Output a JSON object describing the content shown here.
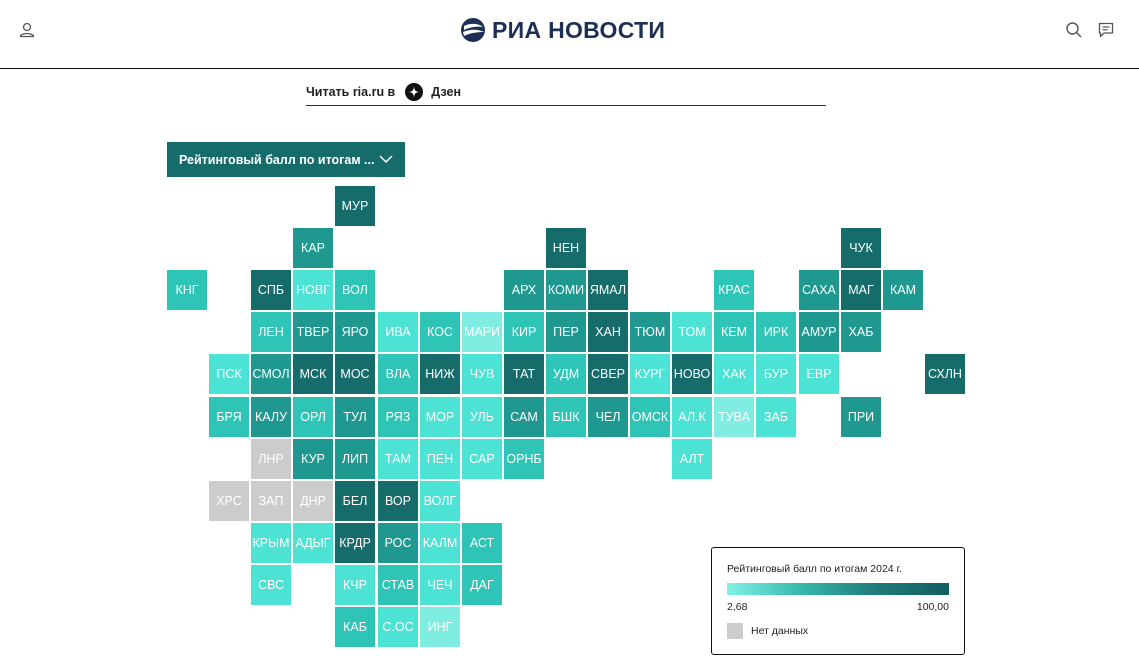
{
  "header": {
    "logo_text": "РИА НОВОСТИ"
  },
  "dzen": {
    "label": "Читать ria.ru в",
    "service": "Дзен"
  },
  "dropdown": {
    "label": "Рейтинговый балл по итогам ..."
  },
  "legend": {
    "title": "Рейтинговый балл по итогам 2024 г.",
    "min": "2,68",
    "max": "100,00",
    "no_data": "Нет данных"
  },
  "colors": {
    "dark": "#166b6b",
    "mid": "#1f9990",
    "light": "#2ec4b6",
    "pale": "#4de3d4",
    "faint": "#80ede2",
    "nodata": "#cccccc"
  },
  "tiles": [
    {
      "label": "МУР",
      "row": 0,
      "col": 4,
      "color": "#166b6b"
    },
    {
      "label": "КАР",
      "row": 1,
      "col": 3,
      "color": "#1f9990"
    },
    {
      "label": "НЕН",
      "row": 1,
      "col": 9,
      "color": "#166b6b"
    },
    {
      "label": "ЧУК",
      "row": 1,
      "col": 16,
      "color": "#166b6b"
    },
    {
      "label": "КНГ",
      "row": 2,
      "col": 0,
      "color": "#2ec4b6"
    },
    {
      "label": "СПБ",
      "row": 2,
      "col": 2,
      "color": "#166b6b"
    },
    {
      "label": "НОВГ",
      "row": 2,
      "col": 3,
      "color": "#4de3d4"
    },
    {
      "label": "ВОЛ",
      "row": 2,
      "col": 4,
      "color": "#2ec4b6"
    },
    {
      "label": "АРХ",
      "row": 2,
      "col": 8,
      "color": "#1f9990"
    },
    {
      "label": "КОМИ",
      "row": 2,
      "col": 9,
      "color": "#1f9990"
    },
    {
      "label": "ЯМАЛ",
      "row": 2,
      "col": 10,
      "color": "#166b6b"
    },
    {
      "label": "КРАС",
      "row": 2,
      "col": 13,
      "color": "#2ec4b6"
    },
    {
      "label": "САХА",
      "row": 2,
      "col": 15,
      "color": "#1f9990"
    },
    {
      "label": "МАГ",
      "row": 2,
      "col": 16,
      "color": "#166b6b"
    },
    {
      "label": "КАМ",
      "row": 2,
      "col": 17,
      "color": "#1f9990"
    },
    {
      "label": "ЛЕН",
      "row": 3,
      "col": 2,
      "color": "#2ec4b6"
    },
    {
      "label": "ТВЕР",
      "row": 3,
      "col": 3,
      "color": "#1f9990"
    },
    {
      "label": "ЯРО",
      "row": 3,
      "col": 4,
      "color": "#1f9990"
    },
    {
      "label": "ИВА",
      "row": 3,
      "col": 5,
      "color": "#4de3d4"
    },
    {
      "label": "КОС",
      "row": 3,
      "col": 6,
      "color": "#2ec4b6"
    },
    {
      "label": "МАРИ",
      "row": 3,
      "col": 7,
      "color": "#80ede2"
    },
    {
      "label": "КИР",
      "row": 3,
      "col": 8,
      "color": "#2ec4b6"
    },
    {
      "label": "ПЕР",
      "row": 3,
      "col": 9,
      "color": "#1f9990"
    },
    {
      "label": "ХАН",
      "row": 3,
      "col": 10,
      "color": "#166b6b"
    },
    {
      "label": "ТЮМ",
      "row": 3,
      "col": 11,
      "color": "#1f9990"
    },
    {
      "label": "ТОМ",
      "row": 3,
      "col": 12,
      "color": "#4de3d4"
    },
    {
      "label": "КЕМ",
      "row": 3,
      "col": 13,
      "color": "#2ec4b6"
    },
    {
      "label": "ИРК",
      "row": 3,
      "col": 14,
      "color": "#2ec4b6"
    },
    {
      "label": "АМУР",
      "row": 3,
      "col": 15,
      "color": "#1f9990"
    },
    {
      "label": "ХАБ",
      "row": 3,
      "col": 16,
      "color": "#1f9990"
    },
    {
      "label": "ПСК",
      "row": 4,
      "col": 1,
      "color": "#4de3d4"
    },
    {
      "label": "СМОЛ",
      "row": 4,
      "col": 2,
      "color": "#1f9990"
    },
    {
      "label": "МСК",
      "row": 4,
      "col": 3,
      "color": "#166b6b"
    },
    {
      "label": "МОС",
      "row": 4,
      "col": 4,
      "color": "#166b6b"
    },
    {
      "label": "ВЛА",
      "row": 4,
      "col": 5,
      "color": "#2ec4b6"
    },
    {
      "label": "НИЖ",
      "row": 4,
      "col": 6,
      "color": "#166b6b"
    },
    {
      "label": "ЧУВ",
      "row": 4,
      "col": 7,
      "color": "#4de3d4"
    },
    {
      "label": "ТАТ",
      "row": 4,
      "col": 8,
      "color": "#166b6b"
    },
    {
      "label": "УДМ",
      "row": 4,
      "col": 9,
      "color": "#2ec4b6"
    },
    {
      "label": "СВЕР",
      "row": 4,
      "col": 10,
      "color": "#166b6b"
    },
    {
      "label": "КУРГ",
      "row": 4,
      "col": 11,
      "color": "#4de3d4"
    },
    {
      "label": "НОВО",
      "row": 4,
      "col": 12,
      "color": "#166b6b"
    },
    {
      "label": "ХАК",
      "row": 4,
      "col": 13,
      "color": "#4de3d4"
    },
    {
      "label": "БУР",
      "row": 4,
      "col": 14,
      "color": "#4de3d4"
    },
    {
      "label": "ЕВР",
      "row": 4,
      "col": 15,
      "color": "#4de3d4"
    },
    {
      "label": "СХЛН",
      "row": 4,
      "col": 18,
      "color": "#166b6b"
    },
    {
      "label": "БРЯ",
      "row": 5,
      "col": 1,
      "color": "#2ec4b6"
    },
    {
      "label": "КАЛУ",
      "row": 5,
      "col": 2,
      "color": "#1f9990"
    },
    {
      "label": "ОРЛ",
      "row": 5,
      "col": 3,
      "color": "#2ec4b6"
    },
    {
      "label": "ТУЛ",
      "row": 5,
      "col": 4,
      "color": "#1f9990"
    },
    {
      "label": "РЯЗ",
      "row": 5,
      "col": 5,
      "color": "#2ec4b6"
    },
    {
      "label": "МОР",
      "row": 5,
      "col": 6,
      "color": "#4de3d4"
    },
    {
      "label": "УЛЬ",
      "row": 5,
      "col": 7,
      "color": "#4de3d4"
    },
    {
      "label": "САМ",
      "row": 5,
      "col": 8,
      "color": "#1f9990"
    },
    {
      "label": "БШК",
      "row": 5,
      "col": 9,
      "color": "#2ec4b6"
    },
    {
      "label": "ЧЕЛ",
      "row": 5,
      "col": 10,
      "color": "#1f9990"
    },
    {
      "label": "ОМСК",
      "row": 5,
      "col": 11,
      "color": "#2ec4b6"
    },
    {
      "label": "АЛ.К",
      "row": 5,
      "col": 12,
      "color": "#4de3d4"
    },
    {
      "label": "ТУВА",
      "row": 5,
      "col": 13,
      "color": "#80ede2"
    },
    {
      "label": "ЗАБ",
      "row": 5,
      "col": 14,
      "color": "#4de3d4"
    },
    {
      "label": "ПРИ",
      "row": 5,
      "col": 16,
      "color": "#1f9990"
    },
    {
      "label": "ЛНР",
      "row": 6,
      "col": 2,
      "color": "#cccccc"
    },
    {
      "label": "КУР",
      "row": 6,
      "col": 3,
      "color": "#1f9990"
    },
    {
      "label": "ЛИП",
      "row": 6,
      "col": 4,
      "color": "#1f9990"
    },
    {
      "label": "ТАМ",
      "row": 6,
      "col": 5,
      "color": "#4de3d4"
    },
    {
      "label": "ПЕН",
      "row": 6,
      "col": 6,
      "color": "#4de3d4"
    },
    {
      "label": "САР",
      "row": 6,
      "col": 7,
      "color": "#4de3d4"
    },
    {
      "label": "ОРНБ",
      "row": 6,
      "col": 8,
      "color": "#2ec4b6"
    },
    {
      "label": "АЛТ",
      "row": 6,
      "col": 12,
      "color": "#4de3d4"
    },
    {
      "label": "ХРС",
      "row": 7,
      "col": 1,
      "color": "#cccccc"
    },
    {
      "label": "ЗАП",
      "row": 7,
      "col": 2,
      "color": "#cccccc"
    },
    {
      "label": "ДНР",
      "row": 7,
      "col": 3,
      "color": "#cccccc"
    },
    {
      "label": "БЕЛ",
      "row": 7,
      "col": 4,
      "color": "#166b6b"
    },
    {
      "label": "ВОР",
      "row": 7,
      "col": 5,
      "color": "#166b6b"
    },
    {
      "label": "ВОЛГ",
      "row": 7,
      "col": 6,
      "color": "#4de3d4"
    },
    {
      "label": "КРЫМ",
      "row": 8,
      "col": 2,
      "color": "#4de3d4"
    },
    {
      "label": "АДЫГ",
      "row": 8,
      "col": 3,
      "color": "#4de3d4"
    },
    {
      "label": "КРДР",
      "row": 8,
      "col": 4,
      "color": "#166b6b"
    },
    {
      "label": "РОС",
      "row": 8,
      "col": 5,
      "color": "#1f9990"
    },
    {
      "label": "КАЛМ",
      "row": 8,
      "col": 6,
      "color": "#4de3d4"
    },
    {
      "label": "АСТ",
      "row": 8,
      "col": 7,
      "color": "#2ec4b6"
    },
    {
      "label": "СВС",
      "row": 9,
      "col": 2,
      "color": "#4de3d4"
    },
    {
      "label": "КЧР",
      "row": 9,
      "col": 4,
      "color": "#4de3d4"
    },
    {
      "label": "СТАВ",
      "row": 9,
      "col": 5,
      "color": "#2ec4b6"
    },
    {
      "label": "ЧЕЧ",
      "row": 9,
      "col": 6,
      "color": "#4de3d4"
    },
    {
      "label": "ДАГ",
      "row": 9,
      "col": 7,
      "color": "#2ec4b6"
    },
    {
      "label": "КАБ",
      "row": 10,
      "col": 4,
      "color": "#2ec4b6"
    },
    {
      "label": "С.ОС",
      "row": 10,
      "col": 5,
      "color": "#4de3d4"
    },
    {
      "label": "ИНГ",
      "row": 10,
      "col": 6,
      "color": "#80ede2"
    }
  ]
}
